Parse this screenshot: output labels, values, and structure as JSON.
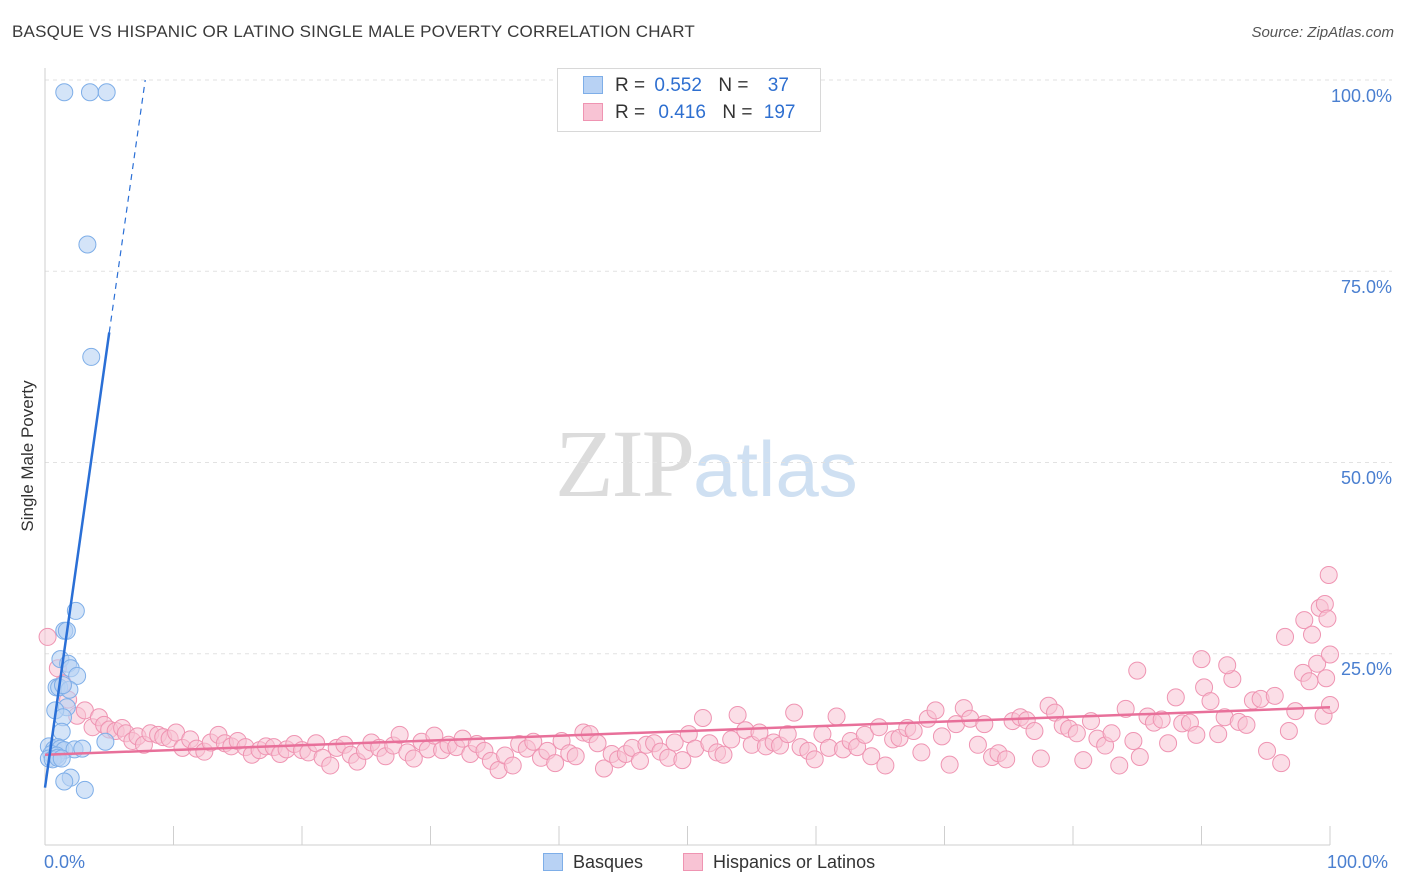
{
  "header": {
    "title": "BASQUE VS HISPANIC OR LATINO SINGLE MALE POVERTY CORRELATION CHART",
    "source": "Source: ZipAtlas.com"
  },
  "watermark": {
    "zip": "ZIP",
    "atlas": "atlas"
  },
  "legend": {
    "r_label": "R =",
    "n_label": "N =",
    "basques": {
      "r": "0.552",
      "n": "37"
    },
    "hispanics": {
      "r": "0.416",
      "n": "197"
    }
  },
  "bottom_legend": {
    "basques": "Basques",
    "hispanics": "Hispanics or Latinos"
  },
  "colors": {
    "basques_fill": "#b8d2f4",
    "basques_stroke": "#7eaee8",
    "basques_line": "#2a6fd6",
    "hispanics_fill": "#f8c3d4",
    "hispanics_stroke": "#ef94b2",
    "hispanics_line": "#e8709a",
    "axis_text": "#4a7fd0",
    "grid": "#e2e2e2"
  },
  "chart_data": {
    "type": "scatter",
    "title": "BASQUE VS HISPANIC OR LATINO SINGLE MALE POVERTY CORRELATION CHART",
    "xlabel": "",
    "ylabel": "Single Male Poverty",
    "x_tick_labels": [
      "0.0%",
      "100.0%"
    ],
    "y_tick_labels": [
      "25.0%",
      "50.0%",
      "75.0%",
      "100.0%"
    ],
    "y_ticks": [
      25,
      50,
      75,
      100
    ],
    "xlim": [
      0,
      100
    ],
    "ylim": [
      0,
      100
    ],
    "grid": true,
    "legend_position": "top-center",
    "series": [
      {
        "name": "Basques",
        "r": 0.552,
        "n": 37,
        "trend": {
          "x": [
            0.0,
            5.0
          ],
          "y": [
            7.5,
            67.0
          ],
          "dashed_to": [
            7.8,
            100.0
          ]
        },
        "points": [
          [
            1.5,
            98.4
          ],
          [
            3.5,
            98.4
          ],
          [
            4.8,
            98.4
          ],
          [
            3.3,
            78.5
          ],
          [
            3.6,
            63.8
          ],
          [
            2.4,
            30.6
          ],
          [
            1.5,
            28.0
          ],
          [
            1.7,
            28.0
          ],
          [
            1.2,
            24.3
          ],
          [
            1.8,
            23.7
          ],
          [
            2.0,
            23.1
          ],
          [
            2.5,
            22.1
          ],
          [
            0.9,
            20.6
          ],
          [
            1.1,
            20.6
          ],
          [
            1.9,
            20.3
          ],
          [
            1.4,
            20.9
          ],
          [
            1.7,
            18.0
          ],
          [
            0.8,
            17.6
          ],
          [
            1.4,
            16.7
          ],
          [
            1.3,
            14.8
          ],
          [
            0.3,
            12.9
          ],
          [
            0.7,
            12.5
          ],
          [
            1.0,
            12.8
          ],
          [
            1.2,
            12.6
          ],
          [
            1.5,
            12.4
          ],
          [
            2.3,
            12.5
          ],
          [
            2.9,
            12.6
          ],
          [
            0.5,
            11.9
          ],
          [
            0.9,
            11.7
          ],
          [
            0.3,
            11.3
          ],
          [
            0.6,
            11.2
          ],
          [
            1.0,
            11.4
          ],
          [
            1.3,
            11.3
          ],
          [
            4.7,
            13.5
          ],
          [
            2.0,
            8.8
          ],
          [
            1.5,
            8.3
          ],
          [
            3.1,
            7.2
          ]
        ]
      },
      {
        "name": "Hispanics or Latinos",
        "r": 0.416,
        "n": 197,
        "trend": {
          "x": [
            0.0,
            100.0
          ],
          "y": [
            11.8,
            18.0
          ]
        },
        "points": [
          [
            0.2,
            27.2
          ],
          [
            1.0,
            23.1
          ],
          [
            1.4,
            21.1
          ],
          [
            1.8,
            19.0
          ],
          [
            2.5,
            16.9
          ],
          [
            3.1,
            17.6
          ],
          [
            3.7,
            15.4
          ],
          [
            4.2,
            16.7
          ],
          [
            4.6,
            15.7
          ],
          [
            5.0,
            15.1
          ],
          [
            5.5,
            14.9
          ],
          [
            6.0,
            15.3
          ],
          [
            6.3,
            14.6
          ],
          [
            6.8,
            13.6
          ],
          [
            7.2,
            14.2
          ],
          [
            7.7,
            13.1
          ],
          [
            8.2,
            14.6
          ],
          [
            8.8,
            14.4
          ],
          [
            9.2,
            14.1
          ],
          [
            9.7,
            13.9
          ],
          [
            10.2,
            14.7
          ],
          [
            10.7,
            12.7
          ],
          [
            11.3,
            13.8
          ],
          [
            11.8,
            12.6
          ],
          [
            12.4,
            12.2
          ],
          [
            12.9,
            13.4
          ],
          [
            13.5,
            14.4
          ],
          [
            14.0,
            13.3
          ],
          [
            14.5,
            12.9
          ],
          [
            15.0,
            13.6
          ],
          [
            15.6,
            12.8
          ],
          [
            16.1,
            11.8
          ],
          [
            16.7,
            12.4
          ],
          [
            17.2,
            12.9
          ],
          [
            17.8,
            12.8
          ],
          [
            18.3,
            11.9
          ],
          [
            18.8,
            12.5
          ],
          [
            19.4,
            13.2
          ],
          [
            20.0,
            12.4
          ],
          [
            20.5,
            12.1
          ],
          [
            21.1,
            13.3
          ],
          [
            21.6,
            11.4
          ],
          [
            22.2,
            10.4
          ],
          [
            22.7,
            12.7
          ],
          [
            23.3,
            13.1
          ],
          [
            23.8,
            11.8
          ],
          [
            24.3,
            10.9
          ],
          [
            24.9,
            12.3
          ],
          [
            25.4,
            13.4
          ],
          [
            26.0,
            12.7
          ],
          [
            26.5,
            11.6
          ],
          [
            27.1,
            13.0
          ],
          [
            27.6,
            14.4
          ],
          [
            28.2,
            12.1
          ],
          [
            28.7,
            11.3
          ],
          [
            29.3,
            13.5
          ],
          [
            29.8,
            12.5
          ],
          [
            30.3,
            14.3
          ],
          [
            30.9,
            12.4
          ],
          [
            31.4,
            13.1
          ],
          [
            32.0,
            12.8
          ],
          [
            32.5,
            13.9
          ],
          [
            33.1,
            11.9
          ],
          [
            33.6,
            13.2
          ],
          [
            34.2,
            12.3
          ],
          [
            34.7,
            11.0
          ],
          [
            35.3,
            9.8
          ],
          [
            35.8,
            11.7
          ],
          [
            36.4,
            10.4
          ],
          [
            36.9,
            13.2
          ],
          [
            37.5,
            12.6
          ],
          [
            38.0,
            13.5
          ],
          [
            38.6,
            11.4
          ],
          [
            39.1,
            12.3
          ],
          [
            39.7,
            10.7
          ],
          [
            40.2,
            13.6
          ],
          [
            40.8,
            12.0
          ],
          [
            41.3,
            11.6
          ],
          [
            41.9,
            14.7
          ],
          [
            42.4,
            14.5
          ],
          [
            43.0,
            13.3
          ],
          [
            43.5,
            10.0
          ],
          [
            44.1,
            11.9
          ],
          [
            44.6,
            11.2
          ],
          [
            45.2,
            11.9
          ],
          [
            45.7,
            12.7
          ],
          [
            46.3,
            11.0
          ],
          [
            46.8,
            13.1
          ],
          [
            47.4,
            13.3
          ],
          [
            47.9,
            12.2
          ],
          [
            48.5,
            11.4
          ],
          [
            49.0,
            13.4
          ],
          [
            49.6,
            11.1
          ],
          [
            50.1,
            14.5
          ],
          [
            50.6,
            12.6
          ],
          [
            51.2,
            16.6
          ],
          [
            51.7,
            13.3
          ],
          [
            52.3,
            12.1
          ],
          [
            52.8,
            11.8
          ],
          [
            53.4,
            13.8
          ],
          [
            53.9,
            17.0
          ],
          [
            54.5,
            15.0
          ],
          [
            55.0,
            13.1
          ],
          [
            55.6,
            14.7
          ],
          [
            56.1,
            12.9
          ],
          [
            56.7,
            13.4
          ],
          [
            57.2,
            13.0
          ],
          [
            57.8,
            14.5
          ],
          [
            58.3,
            17.3
          ],
          [
            58.8,
            12.8
          ],
          [
            59.4,
            12.3
          ],
          [
            59.9,
            11.2
          ],
          [
            60.5,
            14.5
          ],
          [
            61.0,
            12.7
          ],
          [
            61.6,
            16.8
          ],
          [
            62.1,
            12.5
          ],
          [
            62.7,
            13.6
          ],
          [
            63.2,
            12.8
          ],
          [
            63.8,
            14.4
          ],
          [
            64.3,
            11.6
          ],
          [
            64.9,
            15.4
          ],
          [
            65.4,
            10.4
          ],
          [
            66.0,
            13.8
          ],
          [
            66.5,
            14.0
          ],
          [
            67.1,
            15.3
          ],
          [
            67.6,
            14.9
          ],
          [
            68.2,
            12.1
          ],
          [
            68.7,
            16.5
          ],
          [
            69.3,
            17.6
          ],
          [
            69.8,
            14.2
          ],
          [
            70.4,
            10.5
          ],
          [
            70.9,
            15.8
          ],
          [
            71.5,
            17.9
          ],
          [
            72.0,
            16.5
          ],
          [
            72.6,
            13.1
          ],
          [
            73.1,
            15.8
          ],
          [
            73.7,
            11.5
          ],
          [
            74.2,
            12.0
          ],
          [
            74.8,
            11.2
          ],
          [
            75.3,
            16.2
          ],
          [
            75.9,
            16.7
          ],
          [
            76.4,
            16.3
          ],
          [
            77.0,
            14.9
          ],
          [
            77.5,
            11.3
          ],
          [
            78.1,
            18.2
          ],
          [
            78.6,
            17.3
          ],
          [
            79.2,
            15.6
          ],
          [
            79.7,
            15.2
          ],
          [
            80.3,
            14.6
          ],
          [
            80.8,
            11.1
          ],
          [
            81.4,
            16.2
          ],
          [
            81.9,
            13.9
          ],
          [
            82.5,
            13.0
          ],
          [
            83.0,
            14.6
          ],
          [
            83.6,
            10.4
          ],
          [
            84.1,
            17.8
          ],
          [
            84.7,
            13.6
          ],
          [
            85.2,
            11.5
          ],
          [
            85.8,
            16.8
          ],
          [
            86.3,
            16.0
          ],
          [
            86.9,
            16.4
          ],
          [
            87.4,
            13.3
          ],
          [
            88.0,
            19.3
          ],
          [
            88.5,
            15.9
          ],
          [
            89.1,
            16.0
          ],
          [
            89.6,
            14.4
          ],
          [
            90.2,
            20.6
          ],
          [
            90.7,
            18.8
          ],
          [
            91.3,
            14.5
          ],
          [
            91.8,
            16.7
          ],
          [
            92.4,
            21.7
          ],
          [
            92.9,
            16.1
          ],
          [
            93.5,
            15.7
          ],
          [
            94.0,
            18.9
          ],
          [
            94.6,
            19.1
          ],
          [
            95.1,
            12.3
          ],
          [
            95.7,
            19.5
          ],
          [
            96.2,
            10.7
          ],
          [
            96.8,
            14.9
          ],
          [
            97.3,
            17.5
          ],
          [
            97.9,
            22.5
          ],
          [
            98.4,
            21.4
          ],
          [
            99.0,
            23.7
          ],
          [
            99.5,
            16.9
          ],
          [
            85.0,
            22.8
          ],
          [
            90.0,
            24.3
          ],
          [
            92.0,
            23.5
          ],
          [
            96.5,
            27.2
          ],
          [
            98.0,
            29.4
          ],
          [
            98.6,
            27.5
          ],
          [
            99.2,
            31.0
          ],
          [
            99.6,
            31.5
          ],
          [
            99.8,
            29.6
          ],
          [
            99.9,
            35.3
          ],
          [
            100.0,
            24.9
          ],
          [
            100.0,
            18.3
          ],
          [
            99.7,
            21.8
          ]
        ]
      }
    ]
  }
}
